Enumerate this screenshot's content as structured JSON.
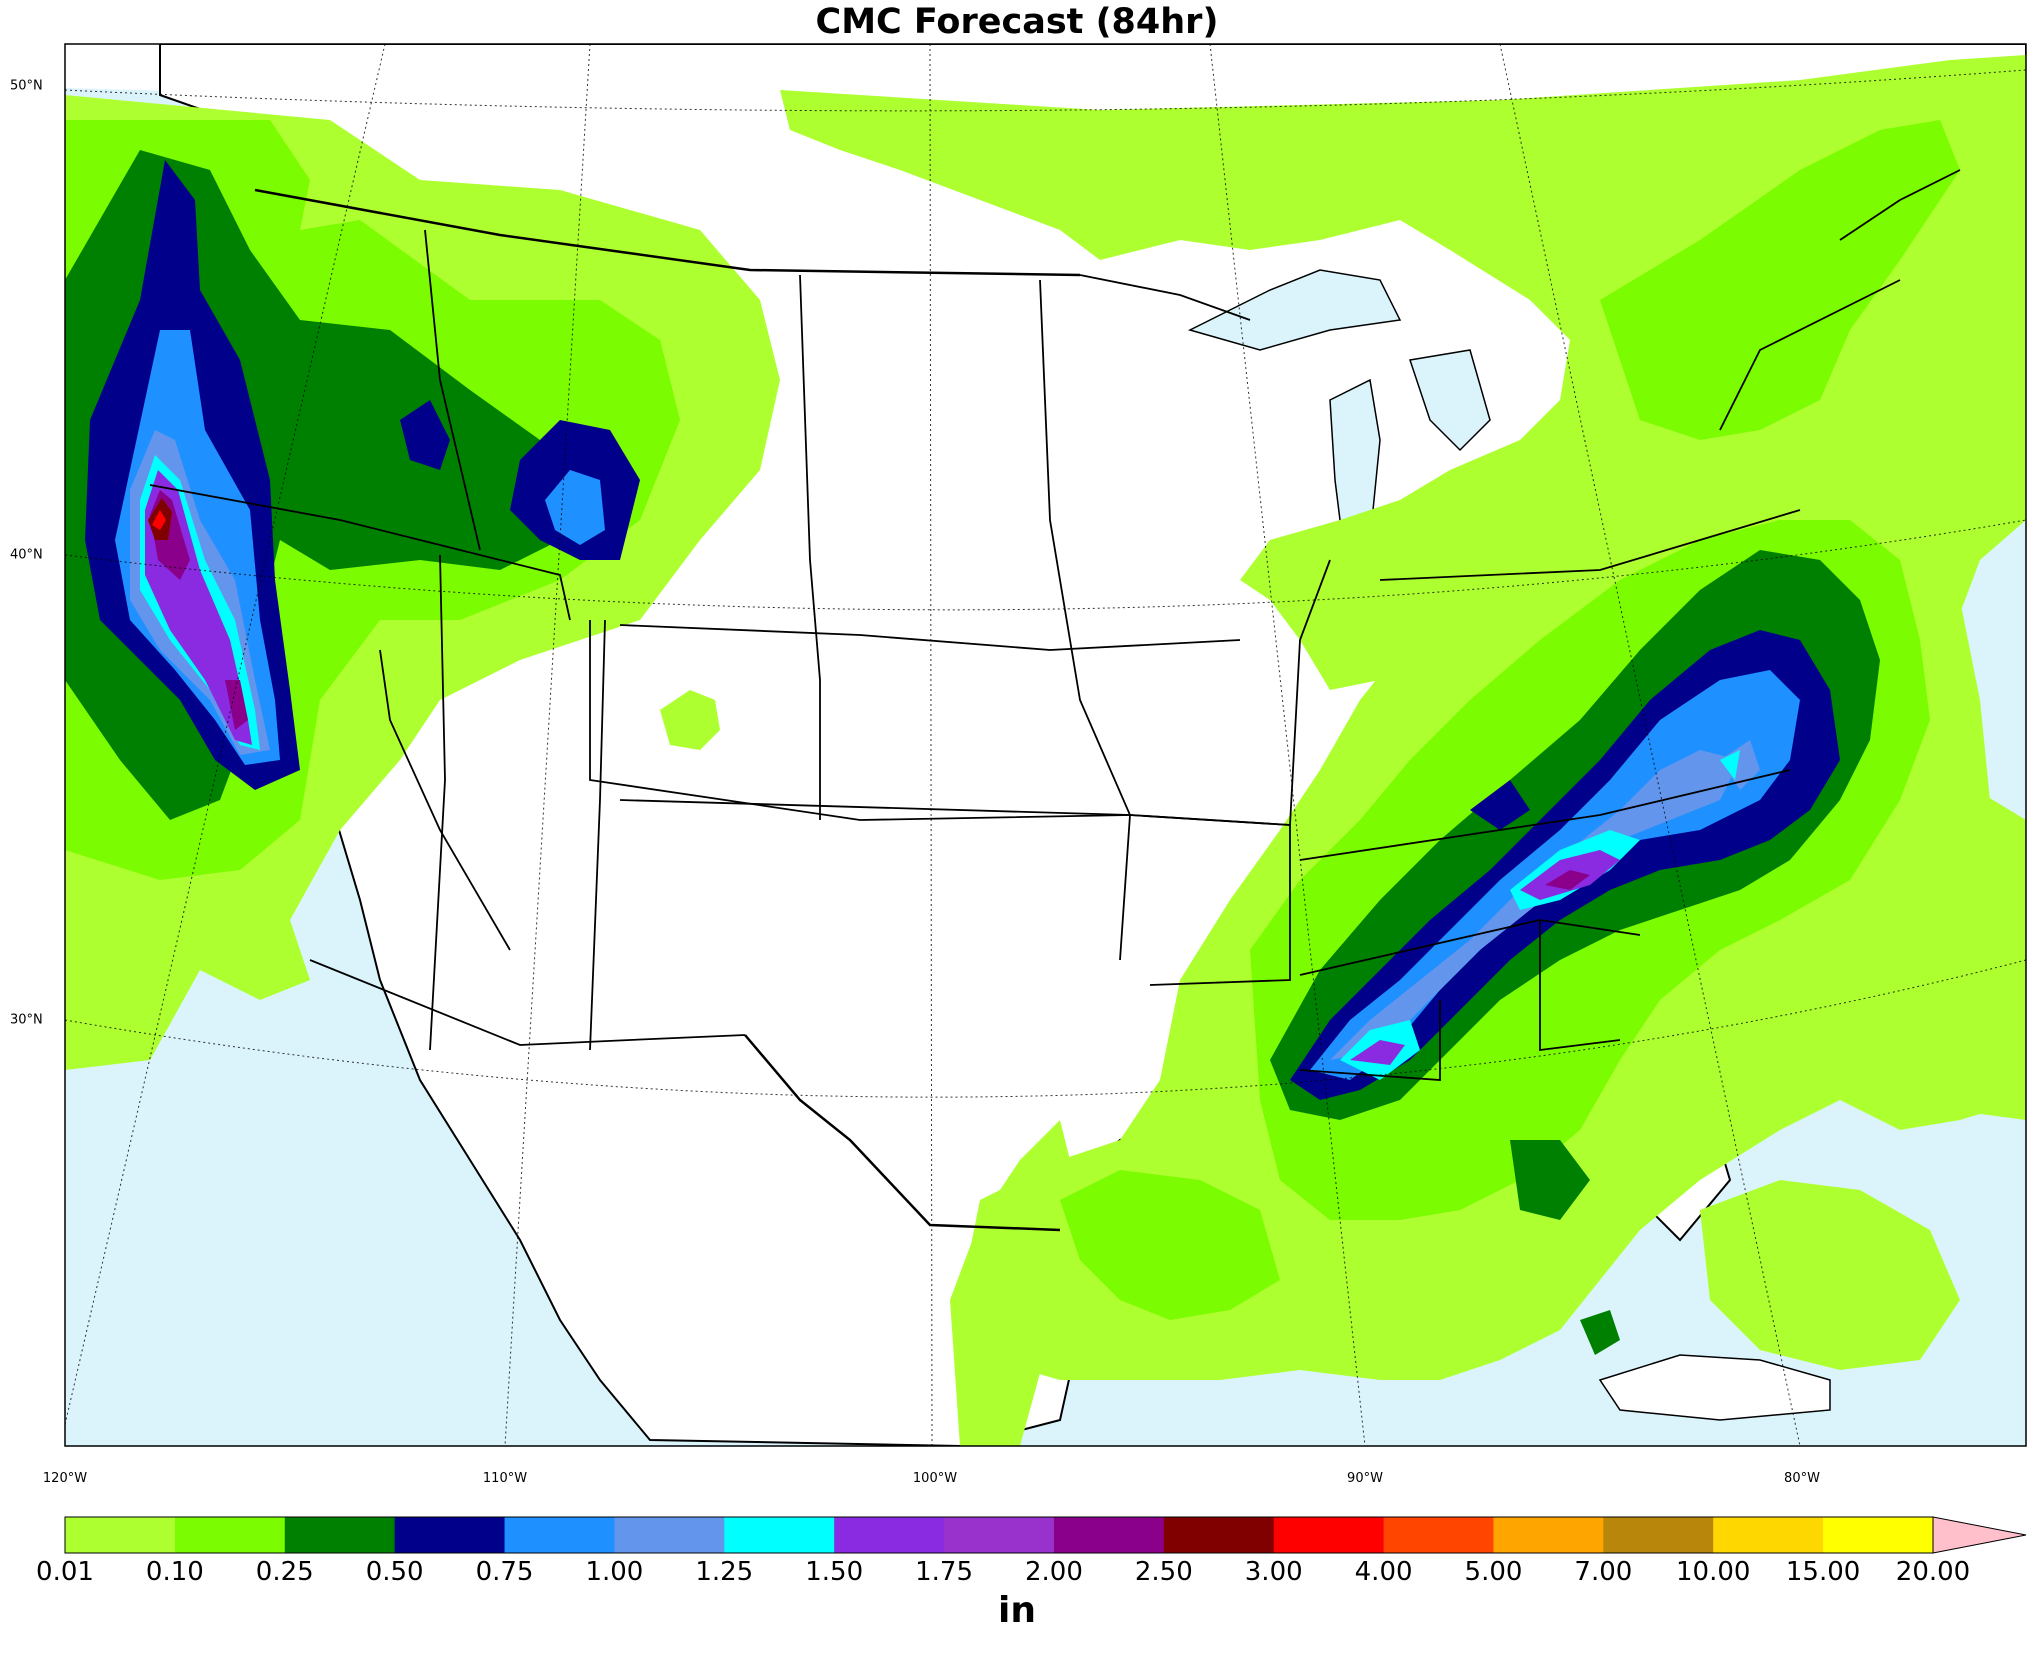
{
  "title": "CMC Forecast (84hr)",
  "colors": {
    "ocean": "#dbf4fb",
    "land": "#ffffff",
    "border": "#000000"
  },
  "axes": {
    "longitude_labels": [
      "120°W",
      "110°W",
      "100°W",
      "90°W",
      "80°W"
    ],
    "latitude_labels": [
      "50°N",
      "40°N",
      "30°N"
    ]
  },
  "colorbar": {
    "unit": "in",
    "ticks": [
      "0.01",
      "0.10",
      "0.25",
      "0.50",
      "0.75",
      "1.00",
      "1.25",
      "1.50",
      "1.75",
      "2.00",
      "2.50",
      "3.00",
      "4.00",
      "5.00",
      "7.00",
      "10.00",
      "15.00",
      "20.00"
    ],
    "colors": [
      "#adff2f",
      "#7cfc00",
      "#008000",
      "#00008b",
      "#1e90ff",
      "#6495ed",
      "#00ffff",
      "#8a2be2",
      "#9932cc",
      "#8b008b",
      "#800000",
      "#ff0000",
      "#ff4500",
      "#ffa500",
      "#b8860b",
      "#ffd700",
      "#ffff00"
    ],
    "extend_color": "#ffc0cb"
  },
  "precip_areas": {
    "pacific_northwest_max_level": "3.00",
    "southeast_max_level": "2.00"
  }
}
